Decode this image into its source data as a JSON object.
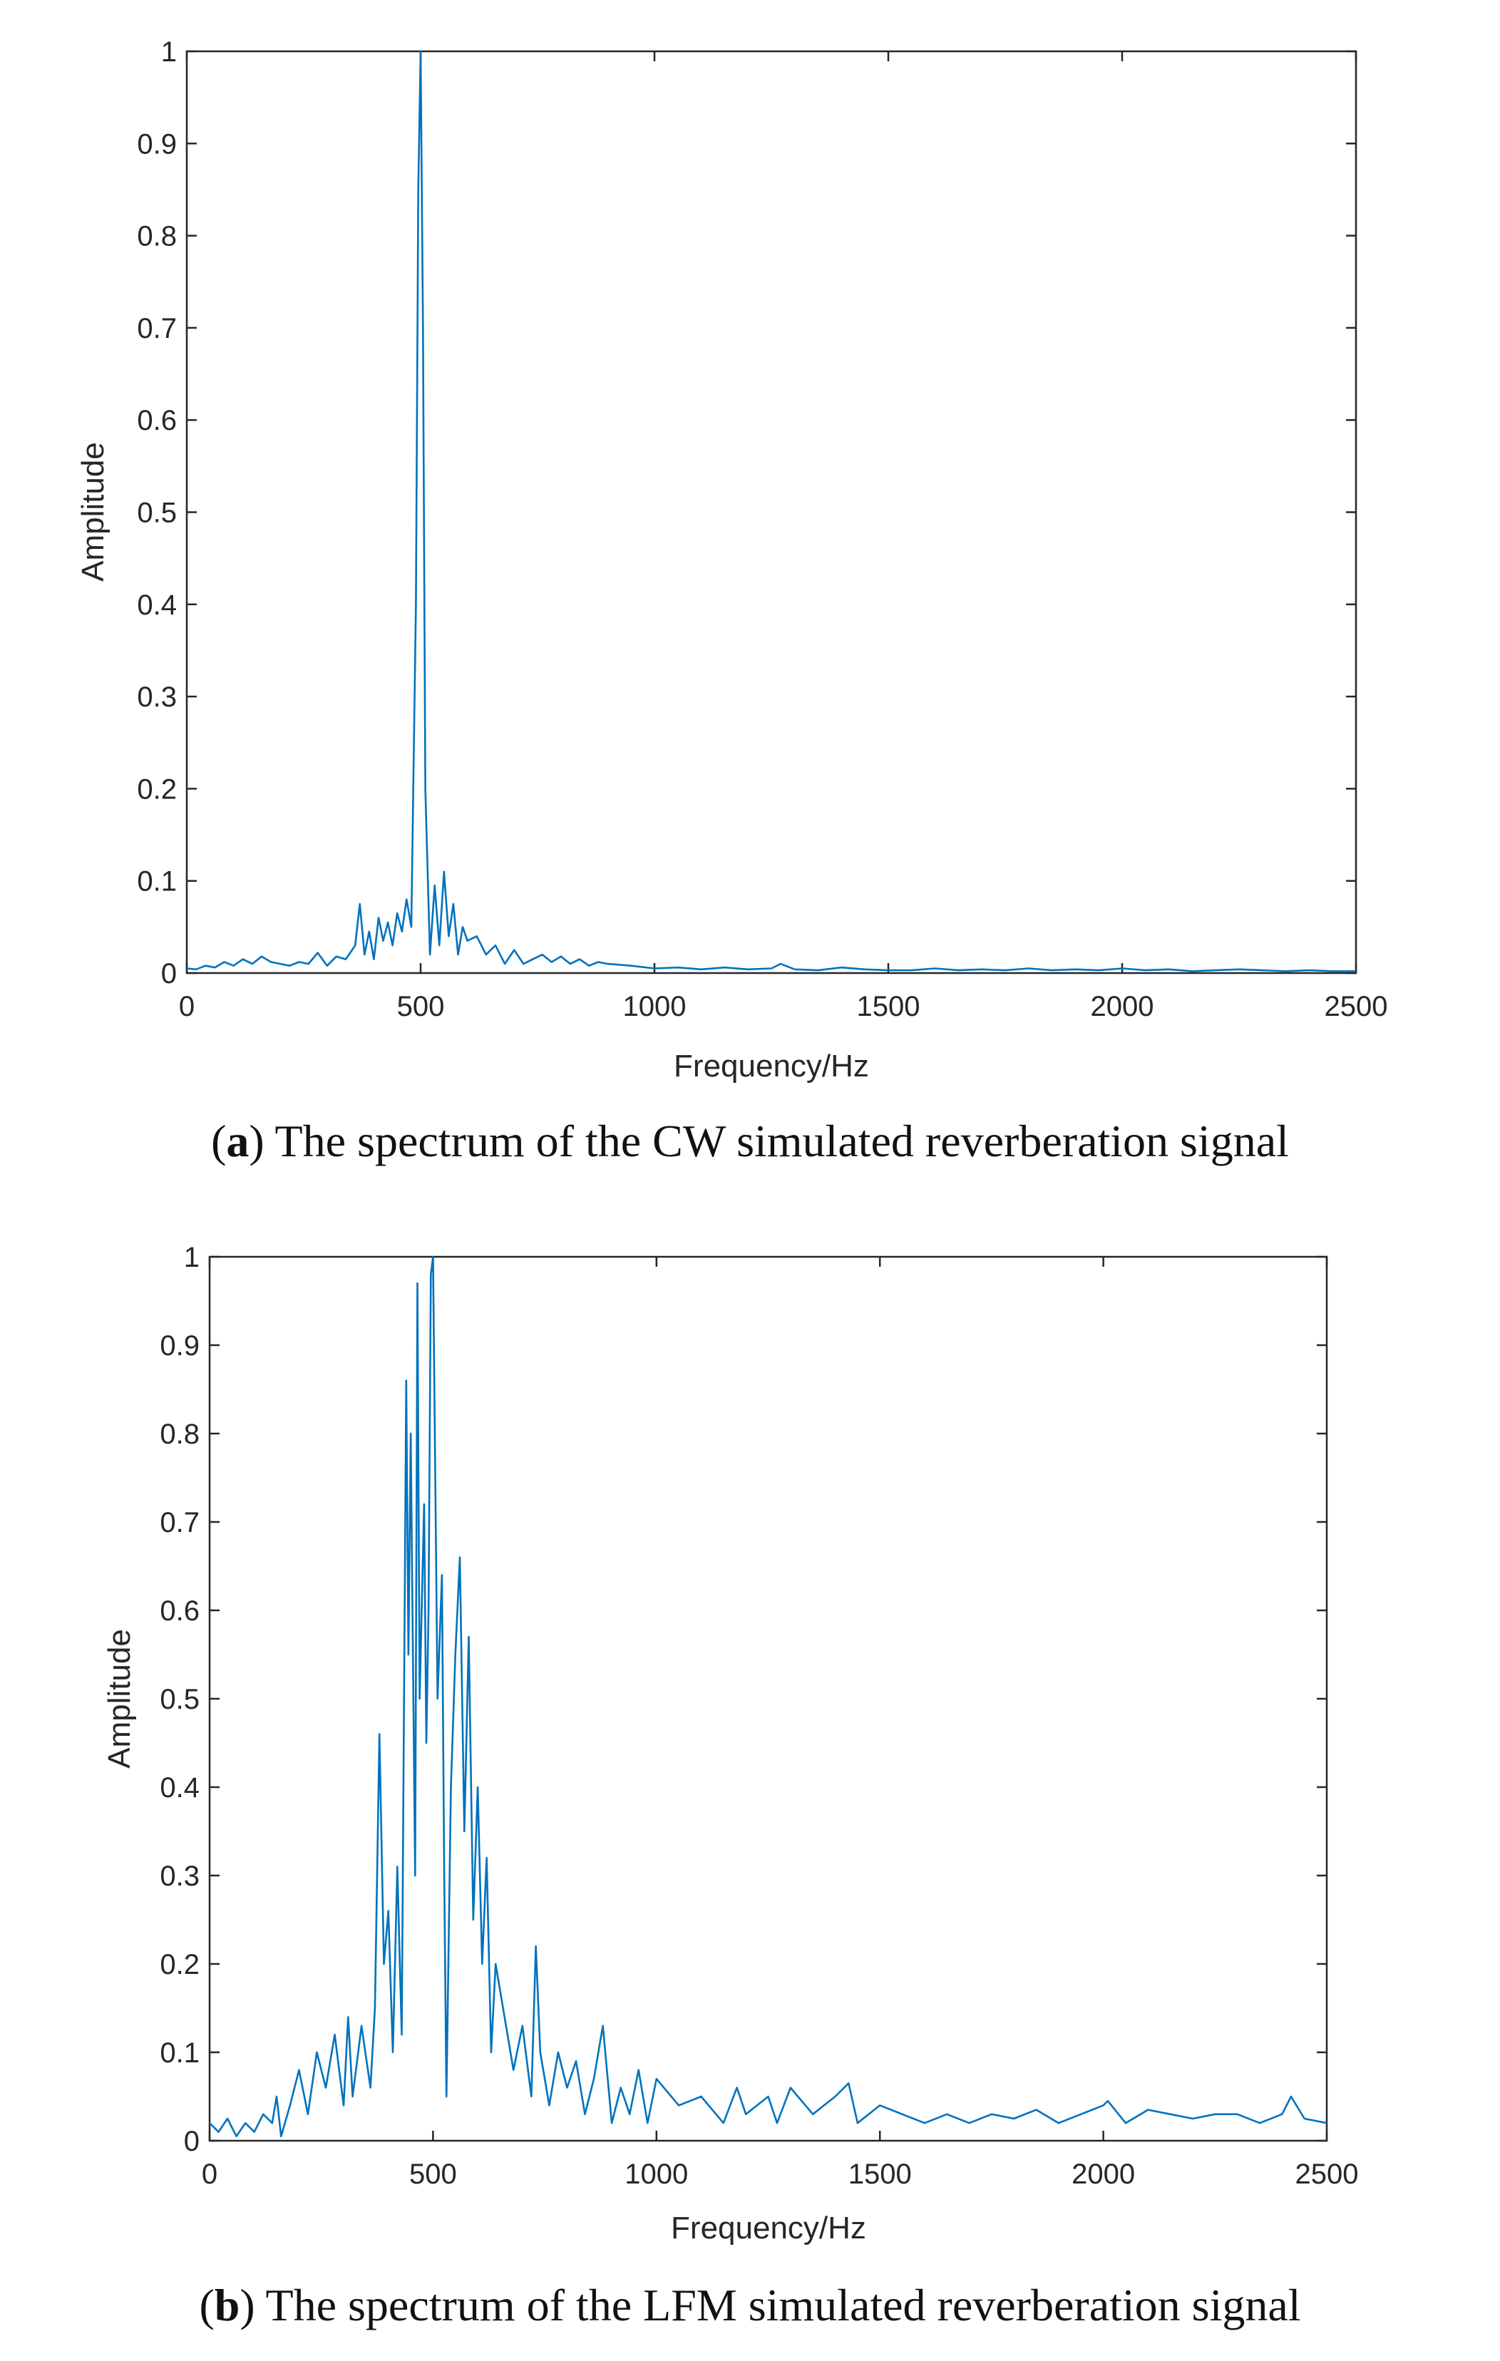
{
  "chart_data": [
    {
      "id": "a",
      "type": "line",
      "caption_letter": "a",
      "caption_text": "The spectrum of the CW simulated reverberation signal",
      "xlabel": "Frequency/Hz",
      "ylabel": "Amplitude",
      "xlim": [
        0,
        2500
      ],
      "ylim": [
        0,
        1
      ],
      "xticks": [
        0,
        500,
        1000,
        1500,
        2000,
        2500
      ],
      "xtick_labels": [
        "0",
        "500",
        "1000",
        "1500",
        "2000",
        "2500"
      ],
      "yticks": [
        0,
        0.1,
        0.2,
        0.3,
        0.4,
        0.5,
        0.6,
        0.7,
        0.8,
        0.9,
        1
      ],
      "ytick_labels": [
        "0",
        "0.1",
        "0.2",
        "0.3",
        "0.4",
        "0.5",
        "0.6",
        "0.7",
        "0.8",
        "0.9",
        "1"
      ],
      "color": "#0072BD",
      "series": [
        {
          "name": "CW spectrum",
          "x": [
            0,
            20,
            40,
            60,
            80,
            100,
            120,
            140,
            160,
            180,
            200,
            220,
            240,
            260,
            280,
            300,
            320,
            340,
            360,
            370,
            380,
            390,
            400,
            410,
            420,
            430,
            440,
            450,
            460,
            470,
            480,
            490,
            495,
            500,
            505,
            510,
            520,
            530,
            540,
            550,
            560,
            570,
            580,
            590,
            600,
            620,
            640,
            660,
            680,
            700,
            720,
            740,
            760,
            780,
            800,
            820,
            840,
            860,
            880,
            900,
            950,
            1000,
            1050,
            1100,
            1150,
            1200,
            1250,
            1270,
            1300,
            1350,
            1400,
            1450,
            1500,
            1550,
            1600,
            1650,
            1700,
            1750,
            1800,
            1850,
            1900,
            1950,
            2000,
            2050,
            2100,
            2150,
            2200,
            2250,
            2300,
            2350,
            2400,
            2450,
            2500
          ],
          "y": [
            0.005,
            0.004,
            0.008,
            0.006,
            0.012,
            0.008,
            0.015,
            0.01,
            0.018,
            0.012,
            0.01,
            0.008,
            0.012,
            0.01,
            0.022,
            0.008,
            0.018,
            0.015,
            0.03,
            0.075,
            0.02,
            0.045,
            0.015,
            0.06,
            0.035,
            0.055,
            0.03,
            0.065,
            0.045,
            0.08,
            0.05,
            0.4,
            0.85,
            1.0,
            0.7,
            0.2,
            0.02,
            0.095,
            0.03,
            0.11,
            0.04,
            0.075,
            0.02,
            0.05,
            0.035,
            0.04,
            0.02,
            0.03,
            0.01,
            0.025,
            0.01,
            0.015,
            0.02,
            0.012,
            0.018,
            0.01,
            0.015,
            0.008,
            0.012,
            0.01,
            0.008,
            0.005,
            0.006,
            0.004,
            0.006,
            0.004,
            0.005,
            0.01,
            0.004,
            0.003,
            0.006,
            0.004,
            0.003,
            0.003,
            0.005,
            0.003,
            0.004,
            0.003,
            0.005,
            0.003,
            0.004,
            0.003,
            0.005,
            0.003,
            0.004,
            0.002,
            0.003,
            0.004,
            0.003,
            0.002,
            0.003,
            0.002,
            0.002
          ]
        }
      ]
    },
    {
      "id": "b",
      "type": "line",
      "caption_letter": "b",
      "caption_text": "The spectrum of the LFM simulated reverberation signal",
      "xlabel": "Frequency/Hz",
      "ylabel": "Amplitude",
      "xlim": [
        0,
        2500
      ],
      "ylim": [
        0,
        1
      ],
      "xticks": [
        0,
        500,
        1000,
        1500,
        2000,
        2500
      ],
      "xtick_labels": [
        "0",
        "500",
        "1000",
        "1500",
        "2000",
        "2500"
      ],
      "yticks": [
        0,
        0.1,
        0.2,
        0.3,
        0.4,
        0.5,
        0.6,
        0.7,
        0.8,
        0.9,
        1
      ],
      "ytick_labels": [
        "0",
        "0.1",
        "0.2",
        "0.3",
        "0.4",
        "0.5",
        "0.6",
        "0.7",
        "0.8",
        "0.9",
        "1"
      ],
      "color": "#0072BD",
      "series": [
        {
          "name": "LFM spectrum",
          "x": [
            0,
            20,
            40,
            60,
            80,
            100,
            120,
            140,
            150,
            160,
            180,
            200,
            220,
            240,
            260,
            280,
            300,
            310,
            320,
            340,
            360,
            370,
            380,
            390,
            400,
            410,
            420,
            430,
            440,
            445,
            450,
            460,
            465,
            470,
            480,
            485,
            490,
            495,
            500,
            510,
            520,
            525,
            530,
            540,
            550,
            560,
            570,
            580,
            590,
            600,
            610,
            620,
            630,
            640,
            660,
            680,
            700,
            720,
            730,
            740,
            760,
            780,
            800,
            820,
            840,
            860,
            880,
            900,
            920,
            940,
            960,
            980,
            1000,
            1050,
            1100,
            1150,
            1180,
            1200,
            1250,
            1270,
            1300,
            1350,
            1400,
            1430,
            1450,
            1500,
            1550,
            1600,
            1650,
            1700,
            1750,
            1800,
            1850,
            1900,
            1950,
            2000,
            2010,
            2050,
            2100,
            2150,
            2200,
            2250,
            2300,
            2350,
            2400,
            2420,
            2450,
            2500
          ],
          "y": [
            0.02,
            0.01,
            0.025,
            0.005,
            0.02,
            0.01,
            0.03,
            0.02,
            0.05,
            0.005,
            0.04,
            0.08,
            0.03,
            0.1,
            0.06,
            0.12,
            0.04,
            0.14,
            0.05,
            0.13,
            0.06,
            0.15,
            0.46,
            0.2,
            0.26,
            0.1,
            0.31,
            0.12,
            0.86,
            0.55,
            0.8,
            0.3,
            0.97,
            0.5,
            0.72,
            0.45,
            0.6,
            0.98,
            1.0,
            0.5,
            0.64,
            0.3,
            0.05,
            0.4,
            0.55,
            0.66,
            0.35,
            0.57,
            0.25,
            0.4,
            0.2,
            0.32,
            0.1,
            0.2,
            0.14,
            0.08,
            0.13,
            0.05,
            0.22,
            0.1,
            0.04,
            0.1,
            0.06,
            0.09,
            0.03,
            0.07,
            0.13,
            0.02,
            0.06,
            0.03,
            0.08,
            0.02,
            0.07,
            0.04,
            0.05,
            0.02,
            0.06,
            0.03,
            0.05,
            0.02,
            0.06,
            0.03,
            0.05,
            0.065,
            0.02,
            0.04,
            0.03,
            0.02,
            0.03,
            0.02,
            0.03,
            0.025,
            0.035,
            0.02,
            0.03,
            0.04,
            0.045,
            0.02,
            0.035,
            0.03,
            0.025,
            0.03,
            0.03,
            0.02,
            0.03,
            0.05,
            0.025,
            0.02
          ]
        }
      ]
    }
  ]
}
